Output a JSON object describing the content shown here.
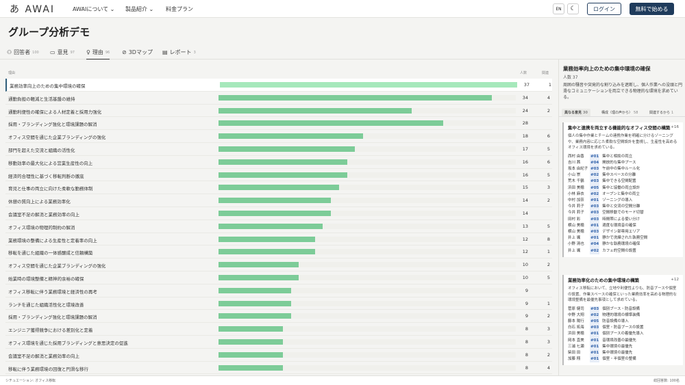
{
  "nav": {
    "logo": "あ AWAI",
    "items": [
      "AWAIについて",
      "製品紹介",
      "料金プラン"
    ],
    "lang": "EN",
    "theme_icon": "moon-icon",
    "login": "ログイン",
    "start": "無料で始める"
  },
  "page": {
    "title": "グループ分析デモ"
  },
  "tabs": [
    {
      "label": "回答者",
      "count": "100",
      "icon": "person-icon"
    },
    {
      "label": "意見",
      "count": "97",
      "icon": "comment-icon"
    },
    {
      "label": "理由",
      "count": "96",
      "icon": "bulb-icon"
    },
    {
      "label": "3Dマップ",
      "count": "",
      "icon": "compass-icon"
    },
    {
      "label": "レポート",
      "count": "3",
      "icon": "document-icon"
    }
  ],
  "table": {
    "col_reason": "理由",
    "col_people": "人数",
    "col_related": "関連",
    "max": 37,
    "rows": [
      {
        "label": "業務効率向上のための集中環境の確保",
        "people": 37,
        "related": "1"
      },
      {
        "label": "通勤負担の軽減と生活基盤の維持",
        "people": 34,
        "related": "4"
      },
      {
        "label": "通勤利便性の確保による人材定着と採用力強化",
        "people": 24,
        "related": "2"
      },
      {
        "label": "採用・ブランディング強化と環境課題の解消",
        "people": 28,
        "related": ""
      },
      {
        "label": "オフィス空間を通じた企業ブランディングの強化",
        "people": 18,
        "related": "6"
      },
      {
        "label": "部門を超えた交流と組織の活性化",
        "people": 17,
        "related": "5"
      },
      {
        "label": "移動効率の最大化による営業生産性の向上",
        "people": 16,
        "related": "6"
      },
      {
        "label": "経済的合理性に基づく移転判断の徹底",
        "people": 16,
        "related": "5"
      },
      {
        "label": "育児と仕事の両立に向けた柔軟な勤務体制",
        "people": 15,
        "related": "3"
      },
      {
        "label": "休憩の質向上による業務効率化",
        "people": 14,
        "related": "2"
      },
      {
        "label": "会議室不足の解消と業務効率の向上",
        "people": 14,
        "related": ""
      },
      {
        "label": "オフィス環境の物理的制約の解消",
        "people": 13,
        "related": "5"
      },
      {
        "label": "業務環境の整備による生産性と定着率の向上",
        "people": 12,
        "related": "8"
      },
      {
        "label": "移転を通じた組織の一体感醸成と信頼構築",
        "people": 12,
        "related": "1"
      },
      {
        "label": "オフィス空間を通じた企業ブランディングの強化",
        "people": 10,
        "related": "2"
      },
      {
        "label": "始業時の環境整備と精神的余裕の確保",
        "people": 10,
        "related": "5"
      },
      {
        "label": "オフィス移転に伴う業務環境と経済性の再考",
        "people": 9,
        "related": ""
      },
      {
        "label": "ランチを通じた組織活性化と環境改善",
        "people": 9,
        "related": "1"
      },
      {
        "label": "採用・ブランディング強化と環境課題の解消",
        "people": 9,
        "related": "2"
      },
      {
        "label": "エンジニア獲得競争における差別化と定着",
        "people": 8,
        "related": "3"
      },
      {
        "label": "オフィス環境を通じた採用ブランディングと意思決定の促進",
        "people": 8,
        "related": "3"
      },
      {
        "label": "会議室不足の解消と業務効率の向上",
        "people": 8,
        "related": "2"
      },
      {
        "label": "移転に伴う業務環境の回復と円滑な移行",
        "people": 8,
        "related": "4"
      }
    ]
  },
  "side": {
    "title": "業務効率向上のための集中環境の確保",
    "count": "人数 37",
    "desc": "周囲の騒音や突発的な割り込みを遮断し、個人作業への没頭と円滑なコミュニケーションを両立できる物理的な環境を求めている。",
    "tabs": [
      {
        "label": "異なる意見",
        "count": "30"
      },
      {
        "label": "構成（理の声から）",
        "count": "58"
      },
      {
        "label": "関連するから",
        "count": "1"
      }
    ],
    "cards": [
      {
        "title": "集中と連携を両立する機能的なオフィス空間の構築",
        "count": "+16",
        "desc": "個人の集中作業とチームの連携作業を明確に分けるゾーニングや、業務内容に応じた柔軟な空間設計を重視し、生産性を高めるオフィス環境を求めている。",
        "entries": [
          {
            "name": "西村 由香",
            "tag": "#01",
            "text": "集中と相談の両立"
          },
          {
            "name": "吉川 茜",
            "tag": "#04",
            "text": "開放的な集中ブース"
          },
          {
            "name": "坂本 由紀子",
            "tag": "#03",
            "text": "午前中の集中ルール化"
          },
          {
            "name": "小山 崇",
            "tag": "#02",
            "text": "集中スペースの分離"
          },
          {
            "name": "荒木 千鶴",
            "tag": "#03",
            "text": "集中できる空間配置"
          },
          {
            "name": "浜田 美穂",
            "tag": "#05",
            "text": "集中と協働の両立設計"
          },
          {
            "name": "小林 麻衣",
            "tag": "#02",
            "text": "オープンと集中の両立"
          },
          {
            "name": "中村 加奈",
            "tag": "#01",
            "text": "ゾーニングの導入"
          },
          {
            "name": "今井 莉子",
            "tag": "#03",
            "text": "集中と交流の空間分離"
          },
          {
            "name": "今井 莉子",
            "tag": "#03",
            "text": "空間移動でのモード切替"
          },
          {
            "name": "田村 彩",
            "tag": "#03",
            "text": "時間帯による使い分け"
          },
          {
            "name": "横山 美穂",
            "tag": "#01",
            "text": "適度な環境音の確保"
          },
          {
            "name": "横山 美穂",
            "tag": "#03",
            "text": "デザイン部専用エリア"
          },
          {
            "name": "井上 颯",
            "tag": "#01",
            "text": "静かで洗練された執務空間"
          },
          {
            "name": "小野 清也",
            "tag": "#04",
            "text": "静かな執務環境の確保"
          },
          {
            "name": "井上 颯",
            "tag": "#02",
            "text": "カフェ的空間の設置"
          }
        ]
      },
      {
        "title": "業務効率化のための集中環境の構築",
        "count": "+12",
        "desc": "オフィス移転において、立地や利便性よりも、防音ブースや個室の設置、作業スペースの確保といった業務効率を高める物理的な環境整備を最優先事項として求めている。",
        "entries": [
          {
            "name": "菅原 健司",
            "tag": "#03",
            "text": "個別ブース・防音設備"
          },
          {
            "name": "中野 大翔",
            "tag": "#02",
            "text": "物理的環境の標準装備"
          },
          {
            "name": "藤本 陽行",
            "tag": "#05",
            "text": "防音設備の導入"
          },
          {
            "name": "白石 拓海",
            "tag": "#03",
            "text": "個室・防音ブースの設置"
          },
          {
            "name": "浜田 美穂",
            "tag": "#01",
            "text": "個別ブースの着優先導入"
          },
          {
            "name": "岡本 直美",
            "tag": "#01",
            "text": "音環境改善の最優先"
          },
          {
            "name": "三浦 七瀬",
            "tag": "#01",
            "text": "集中環境の最優先"
          },
          {
            "name": "柴田 田",
            "tag": "#01",
            "text": "集中環境の最優先"
          },
          {
            "name": "加藤 翔",
            "tag": "#01",
            "text": "個室・半個室の整備"
          }
        ]
      }
    ]
  },
  "footer": {
    "left": "シチュエーション: オフィス移転",
    "right": "総回答数: 100名"
  },
  "colors": {
    "bar": "#7dcc98",
    "bar_selected": "#a6e8bb",
    "accent": "#1f3b5c"
  }
}
